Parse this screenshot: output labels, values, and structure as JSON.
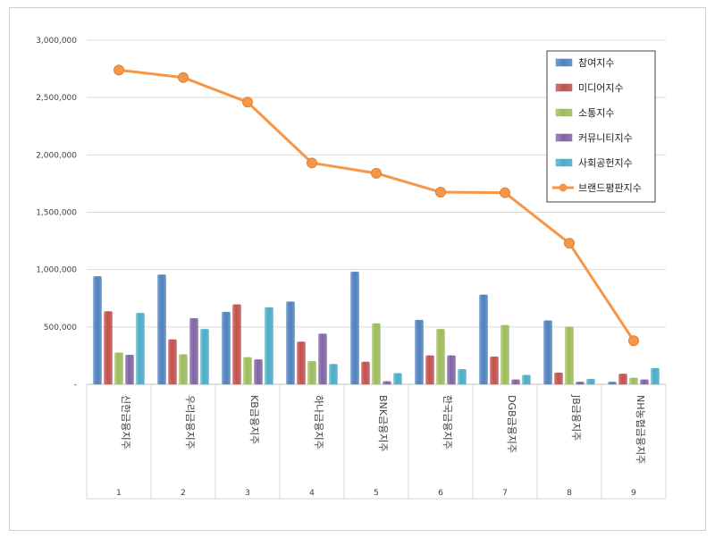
{
  "chart_data": {
    "type": "bar",
    "title": "",
    "xlabel": "",
    "ylabel": "",
    "ylim": [
      0,
      3000000
    ],
    "yticks": [
      "-",
      "500,000",
      "1,000,000",
      "1,500,000",
      "2,000,000",
      "2,500,000",
      "3,000,000"
    ],
    "ytick_values": [
      0,
      500000,
      1000000,
      1500000,
      2000000,
      2500000,
      3000000
    ],
    "grid": true,
    "legend_position": "top-right",
    "categories": [
      "신한금융지주",
      "우리금융지주",
      "KB금융지주",
      "하나금융지주",
      "BNK금융지주",
      "한국금융지주",
      "DGB금융지주",
      "JB금융지주",
      "NH농협금융지주"
    ],
    "ranks": [
      "1",
      "2",
      "3",
      "4",
      "5",
      "6",
      "7",
      "8",
      "9"
    ],
    "series": [
      {
        "name": "참여지수",
        "kind": "bar",
        "color": "#4f81bd",
        "values": [
          940000,
          955000,
          630000,
          720000,
          980000,
          560000,
          780000,
          555000,
          20000
        ]
      },
      {
        "name": "미디어지수",
        "kind": "bar",
        "color": "#c0504d",
        "values": [
          635000,
          390000,
          695000,
          370000,
          195000,
          250000,
          240000,
          100000,
          90000
        ]
      },
      {
        "name": "소통지수",
        "kind": "bar",
        "color": "#9bbb59",
        "values": [
          275000,
          260000,
          235000,
          200000,
          530000,
          480000,
          515000,
          500000,
          55000
        ]
      },
      {
        "name": "커뮤니티지수",
        "kind": "bar",
        "color": "#8064a2",
        "values": [
          255000,
          575000,
          215000,
          440000,
          25000,
          250000,
          40000,
          20000,
          40000
        ]
      },
      {
        "name": "사회공헌지수",
        "kind": "bar",
        "color": "#4bacc6",
        "values": [
          620000,
          480000,
          670000,
          175000,
          95000,
          130000,
          80000,
          45000,
          140000
        ]
      },
      {
        "name": "브랜드평판지수",
        "kind": "line",
        "color": "#f79646",
        "values": [
          2740000,
          2675000,
          2460000,
          1930000,
          1840000,
          1675000,
          1670000,
          1230000,
          380000
        ]
      }
    ]
  }
}
